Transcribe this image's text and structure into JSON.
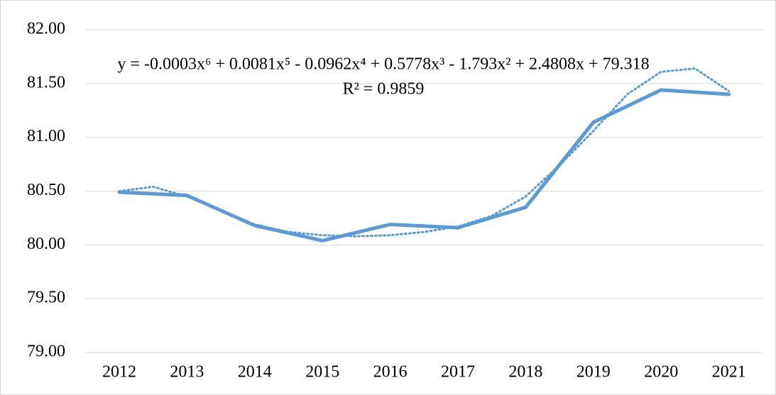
{
  "chart_data": {
    "type": "line",
    "x": [
      2012,
      2013,
      2014,
      2015,
      2016,
      2017,
      2018,
      2019,
      2020,
      2021
    ],
    "values": [
      80.49,
      80.46,
      80.18,
      80.04,
      80.19,
      80.16,
      80.35,
      81.14,
      81.44,
      81.4
    ],
    "color": "#5b9bd5",
    "trendline": {
      "equation": "y = -0.0003x⁶ + 0.0081x⁵ - 0.0962x⁴ + 0.5778x³ - 1.793x² + 2.4808x + 79.318",
      "r_squared": "R² = 0.9859",
      "x": [
        2012,
        2012.5,
        2013,
        2013.5,
        2014,
        2014.5,
        2015,
        2015.5,
        2016,
        2016.5,
        2017,
        2017.5,
        2018,
        2018.5,
        2019,
        2019.5,
        2020,
        2020.5,
        2021
      ],
      "values": [
        80.5,
        80.54,
        80.45,
        80.32,
        80.19,
        80.12,
        80.09,
        80.08,
        80.09,
        80.12,
        80.17,
        80.27,
        80.45,
        80.74,
        81.06,
        81.4,
        81.61,
        81.64,
        81.43
      ]
    },
    "xlim": [
      2011.5,
      2021.5
    ],
    "xticks": [
      2012,
      2013,
      2014,
      2015,
      2016,
      2017,
      2018,
      2019,
      2020,
      2021
    ],
    "ylim": [
      79,
      82
    ],
    "yticks": [
      {
        "value": 79,
        "label": "79.00"
      },
      {
        "value": 79.5,
        "label": "79.50"
      },
      {
        "value": 80,
        "label": "80.00"
      },
      {
        "value": 80.5,
        "label": "80.50"
      },
      {
        "value": 81,
        "label": "81.00"
      },
      {
        "value": 81.5,
        "label": "81.50"
      },
      {
        "value": 82,
        "label": "82.00"
      }
    ],
    "grid": true
  }
}
